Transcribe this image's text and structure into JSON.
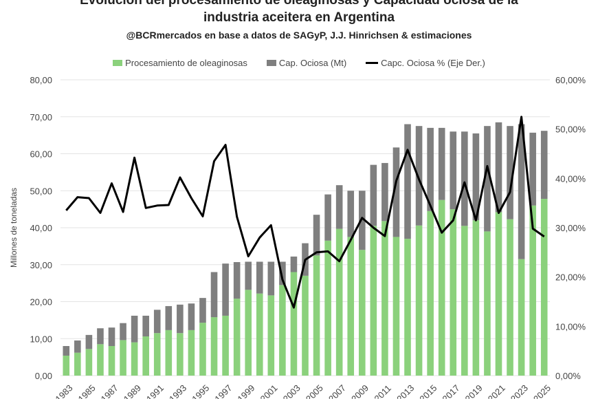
{
  "chart_data": {
    "type": "bar",
    "title": "Evolución del procesamiento de oleaginosas y Capacidad ociosa de la industria aceitera en Argentina",
    "title_line1": "Evolución del procesamiento de oleaginosas y Capacidad ociosa de la",
    "title_line2": "industria aceitera en Argentina",
    "subtitle": "@BCRmercados  en base a datos de SAGyP, J.J. Hinrichsen  & estimaciones",
    "ylabel": "Millones de toneladas",
    "ylim": [
      0,
      80
    ],
    "y2lim": [
      0,
      60
    ],
    "y_ticks": [
      "0,00",
      "10,00",
      "20,00",
      "30,00",
      "40,00",
      "50,00",
      "60,00",
      "70,00",
      "80,00"
    ],
    "y2_ticks": [
      "0,00%",
      "10,00%",
      "20,00%",
      "30,00%",
      "40,00%",
      "50,00%",
      "60,00%"
    ],
    "grid": true,
    "legend_position": "top",
    "stacked": true,
    "categories": [
      "1983",
      "1984",
      "1985",
      "1986",
      "1987",
      "1988",
      "1989",
      "1990",
      "1991",
      "1992",
      "1993",
      "1994",
      "1995",
      "1996",
      "1997",
      "1998",
      "1999",
      "2000",
      "2001",
      "2002",
      "2003",
      "2004",
      "2005",
      "2006",
      "2007",
      "2008",
      "2009",
      "2010",
      "2011",
      "2012",
      "2013",
      "2014",
      "2015",
      "2016",
      "2017",
      "2018",
      "2019",
      "2020",
      "2021",
      "2022",
      "2023",
      "2024",
      "2025"
    ],
    "x_tick_labels": [
      "1983",
      "1985",
      "1987",
      "1989",
      "1991",
      "1993",
      "1995",
      "1997",
      "1999",
      "2001",
      "2003",
      "2005",
      "2007",
      "2009",
      "2011",
      "2013",
      "2015",
      "2017",
      "2019",
      "2021",
      "2023",
      "2025"
    ],
    "series": [
      {
        "name": "Procesamiento de oleaginosas",
        "type": "bar",
        "axis": "left",
        "color": "#8bd17c",
        "values": [
          5.4,
          6.2,
          7.2,
          8.5,
          8.0,
          9.6,
          9.0,
          10.6,
          11.5,
          12.3,
          11.5,
          12.3,
          14.3,
          15.8,
          16.2,
          20.8,
          23.2,
          22.2,
          21.7,
          24.5,
          28.0,
          27.0,
          32.5,
          36.5,
          39.7,
          37.5,
          34.0,
          40.5,
          41.8,
          37.5,
          37.0,
          40.6,
          44.5,
          47.5,
          45.0,
          40.5,
          42.0,
          39.0,
          44.2,
          42.3,
          31.5,
          46.0,
          47.8
        ]
      },
      {
        "name": "Cap. Ociosa (Mt)",
        "type": "bar",
        "axis": "left",
        "color": "#7f7f7f",
        "values": [
          2.6,
          3.3,
          3.8,
          4.3,
          5.0,
          4.6,
          7.2,
          5.6,
          6.3,
          6.5,
          7.7,
          7.2,
          6.7,
          12.2,
          14.1,
          9.9,
          7.6,
          8.6,
          9.1,
          6.3,
          4.2,
          8.8,
          11.0,
          12.5,
          11.8,
          12.5,
          16.0,
          16.5,
          15.7,
          24.2,
          31.0,
          26.9,
          22.5,
          19.5,
          21.0,
          25.5,
          23.5,
          28.5,
          24.3,
          25.2,
          36.5,
          19.7,
          18.4
        ]
      },
      {
        "name": "Capc. Ociosa % (Eje Der.)",
        "type": "line",
        "axis": "right",
        "color": "#000000",
        "values": [
          33.5,
          36.2,
          36.0,
          33.0,
          39.0,
          33.2,
          44.2,
          34.0,
          34.5,
          34.6,
          40.2,
          36.0,
          32.3,
          43.5,
          46.8,
          32.2,
          24.2,
          28.0,
          30.5,
          19.5,
          13.8,
          23.5,
          25.0,
          25.2,
          23.2,
          27.5,
          32.0,
          30.0,
          28.3,
          39.5,
          45.8,
          39.8,
          34.5,
          29.0,
          31.5,
          39.2,
          31.5,
          42.5,
          33.0,
          37.2,
          52.5,
          29.8,
          28.2
        ]
      }
    ]
  }
}
